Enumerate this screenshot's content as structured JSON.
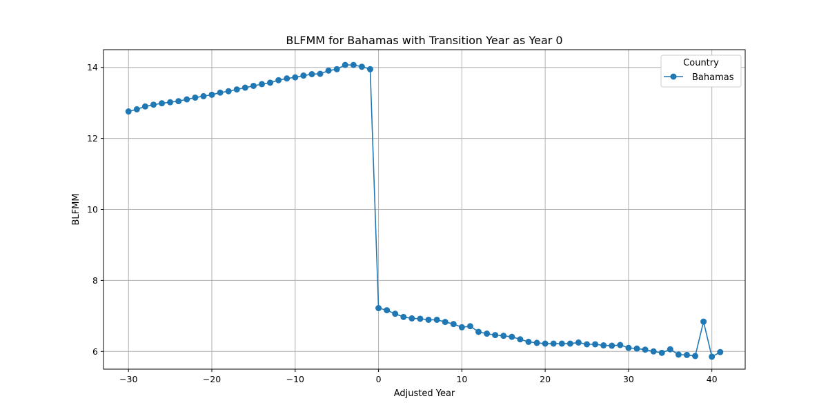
{
  "chart_data": {
    "type": "line",
    "title": "BLFMM for Bahamas with Transition Year as Year 0",
    "xlabel": "Adjusted Year",
    "ylabel": "BLFMM",
    "xlim": [
      -33,
      44
    ],
    "ylim": [
      5.5,
      14.5
    ],
    "x_ticks": [
      -30,
      -20,
      -10,
      0,
      10,
      20,
      30,
      40
    ],
    "x_tick_labels": [
      "−30",
      "−20",
      "−10",
      "0",
      "10",
      "20",
      "30",
      "40"
    ],
    "y_ticks": [
      6,
      8,
      10,
      12,
      14
    ],
    "y_tick_labels": [
      "6",
      "8",
      "10",
      "12",
      "14"
    ],
    "grid": true,
    "legend": {
      "title": "Country",
      "position": "top-right"
    },
    "marker": "circle",
    "series": [
      {
        "name": "Bahamas",
        "color": "#1f77b4",
        "x": [
          -30,
          -29,
          -28,
          -27,
          -26,
          -25,
          -24,
          -23,
          -22,
          -21,
          -20,
          -19,
          -18,
          -17,
          -16,
          -15,
          -14,
          -13,
          -12,
          -11,
          -10,
          -9,
          -8,
          -7,
          -6,
          -5,
          -4,
          -3,
          -2,
          -1,
          0,
          1,
          2,
          3,
          4,
          5,
          6,
          7,
          8,
          9,
          10,
          11,
          12,
          13,
          14,
          15,
          16,
          17,
          18,
          19,
          20,
          21,
          22,
          23,
          24,
          25,
          26,
          27,
          28,
          29,
          30,
          31,
          32,
          33,
          34,
          35,
          36,
          37,
          38,
          39,
          40,
          41
        ],
        "values": [
          12.76,
          12.82,
          12.9,
          12.95,
          12.99,
          13.02,
          13.05,
          13.1,
          13.15,
          13.19,
          13.23,
          13.29,
          13.33,
          13.38,
          13.43,
          13.48,
          13.53,
          13.57,
          13.64,
          13.69,
          13.72,
          13.77,
          13.81,
          13.82,
          13.91,
          13.95,
          14.07,
          14.07,
          14.02,
          13.95,
          7.22,
          7.16,
          7.06,
          6.97,
          6.93,
          6.92,
          6.89,
          6.89,
          6.83,
          6.77,
          6.68,
          6.71,
          6.55,
          6.5,
          6.46,
          6.44,
          6.41,
          6.34,
          6.27,
          6.24,
          6.22,
          6.22,
          6.22,
          6.22,
          6.25,
          6.2,
          6.2,
          6.17,
          6.16,
          6.18,
          6.1,
          6.08,
          6.05,
          6.0,
          5.96,
          6.06,
          5.91,
          5.9,
          5.87,
          6.84,
          5.85,
          5.98
        ]
      }
    ]
  }
}
